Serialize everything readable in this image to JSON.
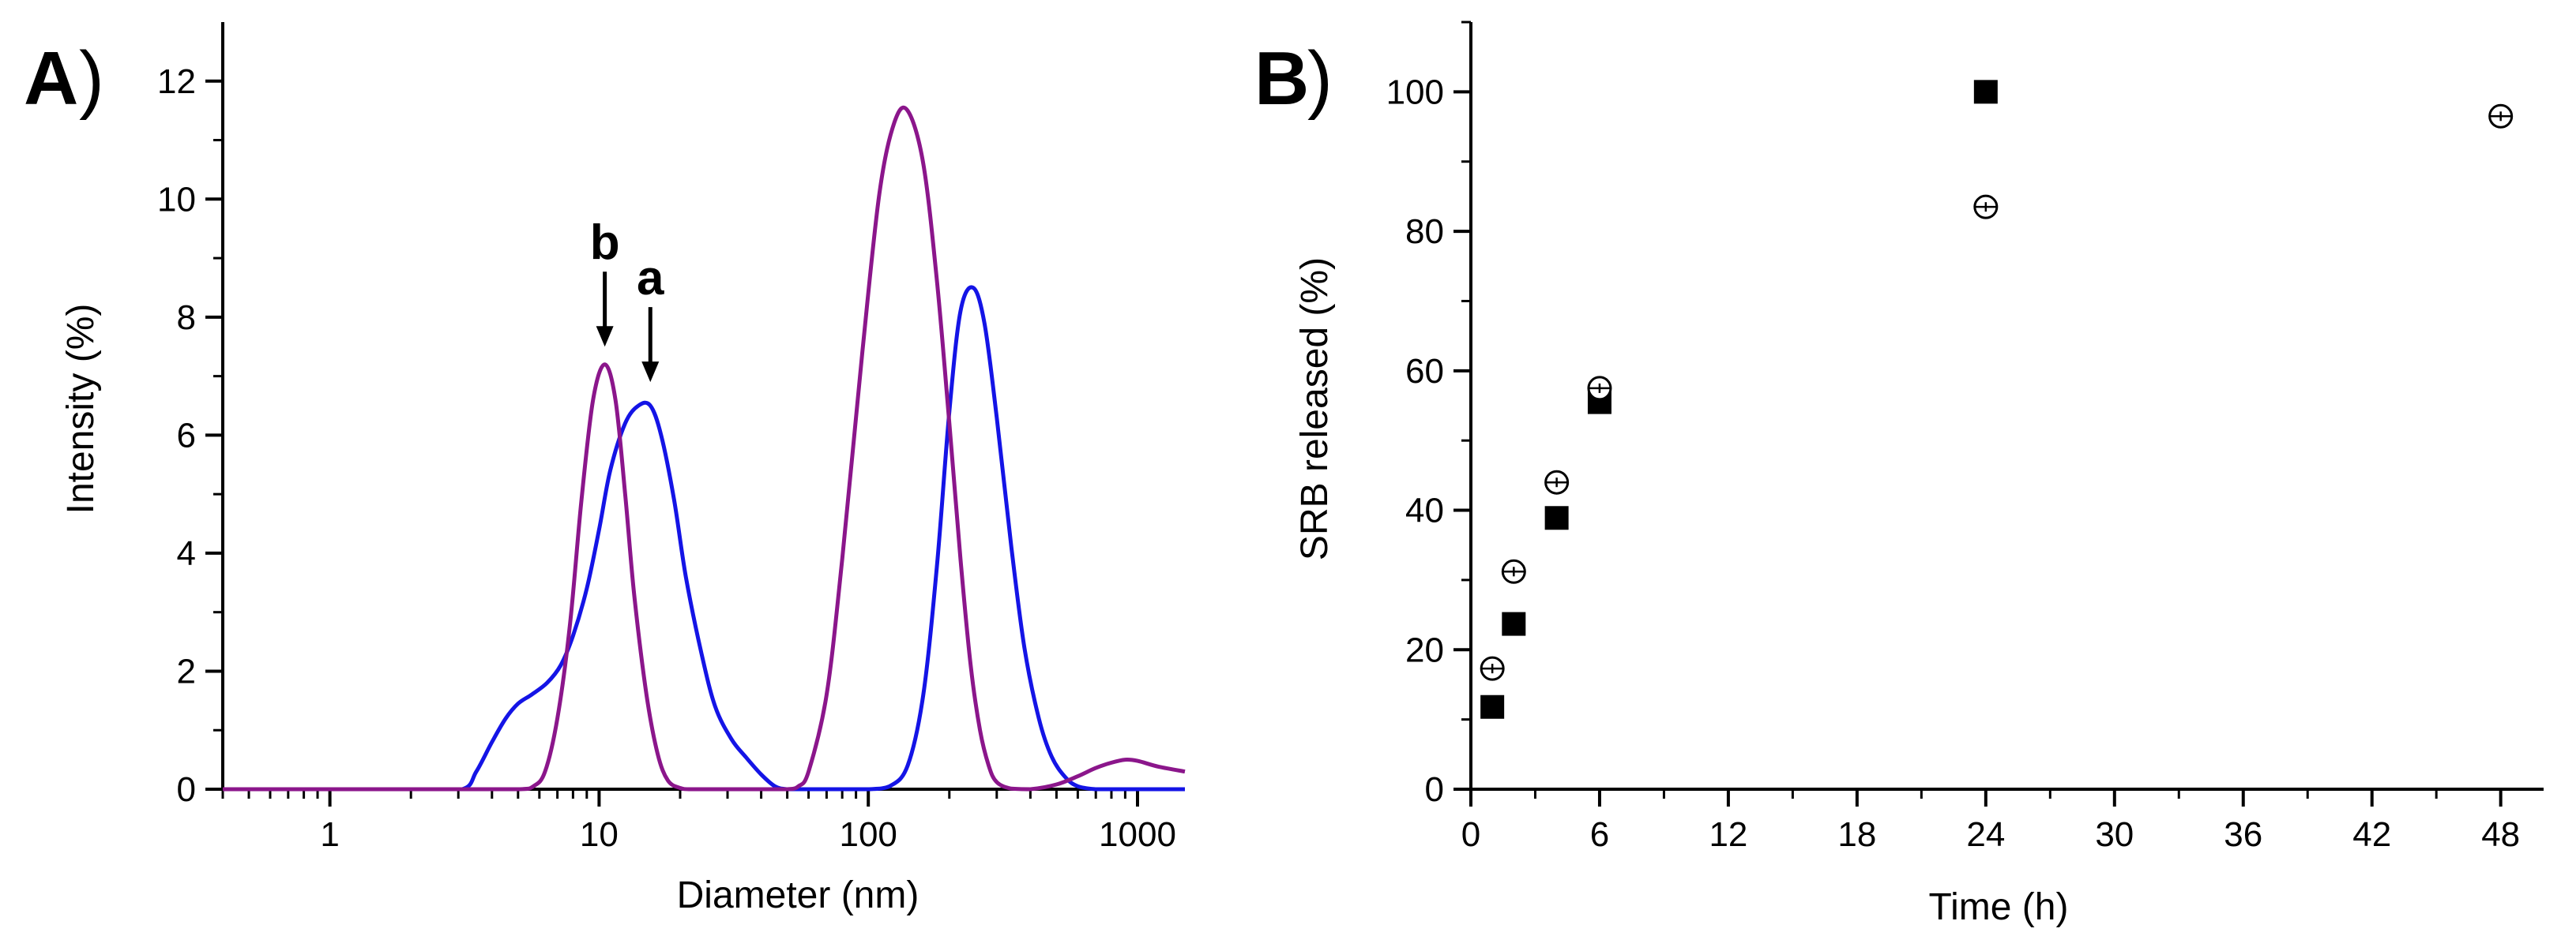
{
  "chart_data": [
    {
      "panel": "A)",
      "panel_letter": "A",
      "panel_paren": ")",
      "type": "line",
      "title": "",
      "xlabel": "Diameter (nm)",
      "ylabel": "Intensity (%)",
      "xscale": "log",
      "xlim": [
        0.4,
        1500
      ],
      "ylim": [
        0,
        13
      ],
      "xticks": [
        {
          "value": 1,
          "label": "1"
        },
        {
          "value": 10,
          "label": "10"
        },
        {
          "value": 100,
          "label": "100"
        },
        {
          "value": 1000,
          "label": "1000"
        }
      ],
      "yticks": [
        {
          "value": 0,
          "label": "0"
        },
        {
          "value": 2,
          "label": "2"
        },
        {
          "value": 4,
          "label": "4"
        },
        {
          "value": 6,
          "label": "6"
        },
        {
          "value": 8,
          "label": "8"
        },
        {
          "value": 10,
          "label": "10"
        },
        {
          "value": 12,
          "label": "12"
        }
      ],
      "series": [
        {
          "name": "a",
          "color": "#1414e6",
          "x": [
            0.4,
            1,
            2,
            3.1,
            3.5,
            4.0,
            4.5,
            5.0,
            5.6,
            6.4,
            7.2,
            8.0,
            9.0,
            10.0,
            11.0,
            12.5,
            14.0,
            15.5,
            17.0,
            19.0,
            21.0,
            24.0,
            27.0,
            31.0,
            35.0,
            40.0,
            45.0,
            50.0,
            60.0,
            80.0,
            100.0,
            120.0,
            140.0,
            160.0,
            180.0,
            200.0,
            220.0,
            245.0,
            270.0,
            300.0,
            340.0,
            380.0,
            430.0,
            480.0,
            540.0,
            600.0,
            700.0,
            800.0,
            1000.0,
            1500.0
          ],
          "y": [
            0,
            0,
            0,
            0,
            0.3,
            0.8,
            1.2,
            1.45,
            1.6,
            1.8,
            2.1,
            2.6,
            3.4,
            4.4,
            5.4,
            6.2,
            6.5,
            6.5,
            6.0,
            4.9,
            3.6,
            2.3,
            1.4,
            0.85,
            0.55,
            0.25,
            0.05,
            0,
            0,
            0,
            0,
            0.05,
            0.4,
            1.6,
            3.8,
            6.4,
            8.1,
            8.5,
            7.9,
            6.3,
            4.1,
            2.4,
            1.2,
            0.55,
            0.2,
            0.05,
            0,
            0,
            0,
            0
          ]
        },
        {
          "name": "b",
          "color": "#8b168b",
          "x": [
            0.4,
            1,
            3,
            5.0,
            5.7,
            6.3,
            7.0,
            7.8,
            8.6,
            9.5,
            10.5,
            11.5,
            12.5,
            13.5,
            15.0,
            16.5,
            18.0,
            20.0,
            22.0,
            30.0,
            40.0,
            50.0,
            55.0,
            60.0,
            70.0,
            80.0,
            95.0,
            110.0,
            125.0,
            140.0,
            160.0,
            180.0,
            200.0,
            220.0,
            240.0,
            260.0,
            280.0,
            300.0,
            340.0,
            400.0,
            500.0,
            600.0,
            700.0,
            800.0,
            900.0,
            1000.0,
            1200.0,
            1500.0
          ],
          "y": [
            0,
            0,
            0,
            0,
            0.05,
            0.3,
            1.2,
            2.8,
            4.9,
            6.6,
            7.2,
            6.6,
            5.0,
            3.3,
            1.6,
            0.6,
            0.15,
            0.02,
            0,
            0,
            0,
            0,
            0.05,
            0.3,
            1.6,
            3.9,
            7.4,
            10.1,
            11.3,
            11.5,
            10.6,
            8.6,
            6.2,
            3.9,
            2.1,
            1.0,
            0.4,
            0.12,
            0.01,
            0,
            0.08,
            0.22,
            0.36,
            0.45,
            0.5,
            0.48,
            0.38,
            0.3
          ]
        }
      ],
      "annotations": [
        {
          "label": "b",
          "x": 10.5,
          "arrow_to_y": 7.5
        },
        {
          "label": "a",
          "x": 15.5,
          "arrow_to_y": 6.9
        }
      ]
    },
    {
      "panel": "B)",
      "panel_letter": "B",
      "panel_paren": ")",
      "type": "scatter",
      "title": "",
      "xlabel": "Time (h)",
      "ylabel": "SRB released (%)",
      "xlim": [
        0,
        50
      ],
      "ylim": [
        0,
        110
      ],
      "xticks": [
        {
          "value": 0,
          "label": "0"
        },
        {
          "value": 6,
          "label": "6"
        },
        {
          "value": 12,
          "label": "12"
        },
        {
          "value": 18,
          "label": "18"
        },
        {
          "value": 24,
          "label": "24"
        },
        {
          "value": 30,
          "label": "30"
        },
        {
          "value": 36,
          "label": "36"
        },
        {
          "value": 42,
          "label": "42"
        },
        {
          "value": 48,
          "label": "48"
        }
      ],
      "yticks": [
        {
          "value": 0,
          "label": "0"
        },
        {
          "value": 20,
          "label": "20"
        },
        {
          "value": 40,
          "label": "40"
        },
        {
          "value": 60,
          "label": "60"
        },
        {
          "value": 80,
          "label": "80"
        },
        {
          "value": 100,
          "label": "100"
        }
      ],
      "series": [
        {
          "name": "filled squares",
          "marker": "square-filled",
          "color": "#000000",
          "x": [
            1,
            2,
            4,
            6,
            24
          ],
          "y": [
            11.8,
            23.7,
            38.9,
            55.5,
            100.0
          ]
        },
        {
          "name": "open circles",
          "marker": "circle-open-crossed",
          "color": "#000000",
          "x": [
            1,
            2,
            4,
            6,
            24,
            48
          ],
          "y": [
            17.3,
            31.2,
            44.0,
            57.5,
            83.5,
            96.5
          ]
        }
      ]
    }
  ]
}
